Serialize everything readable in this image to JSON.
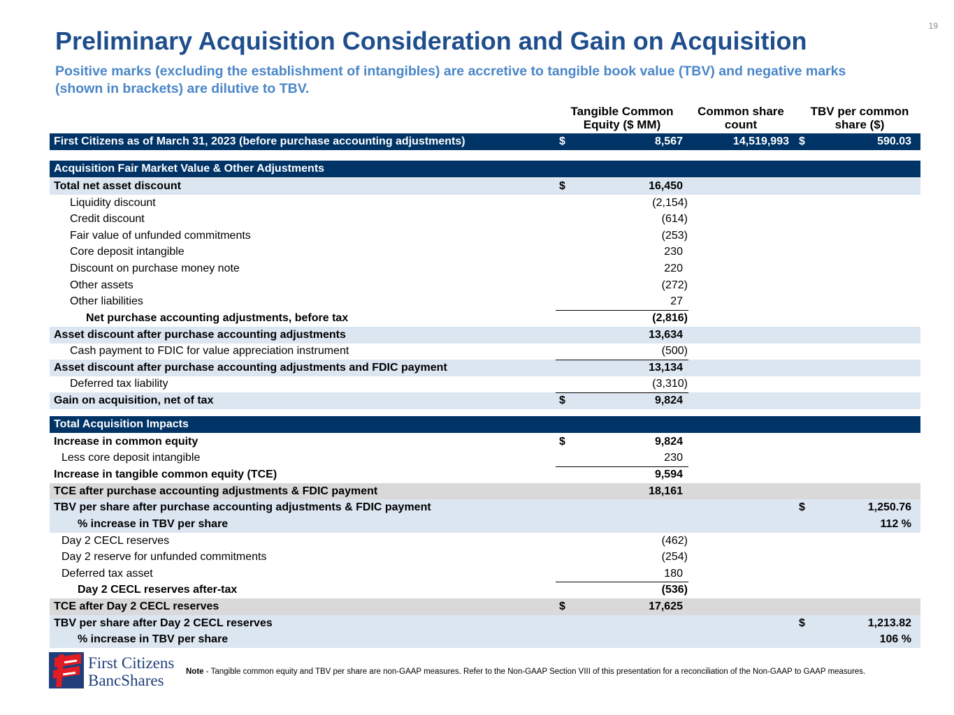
{
  "page_number": "19",
  "title": "Preliminary Acquisition Consideration and Gain on Acquisition",
  "subtitle": "Positive marks (excluding the establishment of intangibles) are accretive to tangible book value (TBV) and negative marks (shown in brackets) are dilutive to TBV.",
  "columns": {
    "tce": "Tangible Common Equity ($ MM)",
    "shares": "Common share count",
    "tbv": "TBV per common share ($)"
  },
  "rows": [
    {
      "label": "First Citizens as of March 31, 2023 (before purchase accounting adjustments)",
      "style": "dark",
      "d1": "$",
      "v1": "8,567",
      "v2": "14,519,993",
      "d3": "$",
      "v3": "590.03"
    },
    {
      "label": "Acquisition Fair Market Value & Other Adjustments",
      "style": "dark"
    },
    {
      "label": "Total net asset discount",
      "style": "light bold",
      "d1": "$",
      "v1": "16,450"
    },
    {
      "label": "Liquidity discount",
      "indent": "ind1",
      "v1": "(2,154)"
    },
    {
      "label": "Credit discount",
      "indent": "ind1",
      "v1": "(614)"
    },
    {
      "label": "Fair value of unfunded commitments",
      "indent": "ind1",
      "v1": "(253)"
    },
    {
      "label": "Core deposit intangible",
      "indent": "ind1",
      "v1": "230"
    },
    {
      "label": "Discount on purchase money note",
      "indent": "ind1",
      "v1": "220"
    },
    {
      "label": "Other assets",
      "indent": "ind1",
      "v1": "(272)"
    },
    {
      "label": "Other liabilities",
      "indent": "ind1",
      "v1": "27"
    },
    {
      "label": "Net purchase accounting adjustments, before tax",
      "style": "bold",
      "indent": "ind2",
      "v1": "(2,816)",
      "uline": true
    },
    {
      "label": "Asset discount after purchase accounting adjustments",
      "style": "light bold",
      "v1": "13,634"
    },
    {
      "label": "Cash payment to FDIC for value appreciation instrument",
      "indent": "ind1",
      "v1": "(500)"
    },
    {
      "label": "Asset discount after purchase accounting adjustments and FDIC payment",
      "style": "light bold",
      "v1": "13,134",
      "uline": true
    },
    {
      "label": "Deferred tax liability",
      "indent": "ind1",
      "v1": "(3,310)"
    },
    {
      "label": "Gain on acquisition, net of tax",
      "style": "light bold",
      "d1": "$",
      "v1": "9,824",
      "uline": true
    },
    {
      "label": "Total Acquisition Impacts",
      "style": "dark"
    },
    {
      "label": "Increase in common equity",
      "style": "bold",
      "d1": "$",
      "v1": "9,824"
    },
    {
      "label": "Less core deposit intangible",
      "indent": "ind1s",
      "v1": "230"
    },
    {
      "label": "Increase in tangible common equity (TCE)",
      "style": "bold",
      "v1": "9,594",
      "uline": true
    },
    {
      "label": "TCE after purchase accounting adjustments & FDIC payment",
      "style": "grey bold",
      "v1": "18,161"
    },
    {
      "label": "TBV per share after purchase accounting adjustments & FDIC payment",
      "style": "light bold",
      "d3": "$",
      "v3": "1,250.76"
    },
    {
      "label": "% increase in TBV per share",
      "style": "light bold",
      "indent": "ind2s",
      "v3": "112 %"
    },
    {
      "label": "Day 2 CECL reserves",
      "indent": "ind1s",
      "v1": "(462)"
    },
    {
      "label": "Day 2 reserve for unfunded commitments",
      "indent": "ind1s",
      "v1": "(254)"
    },
    {
      "label": "Deferred tax asset",
      "indent": "ind1s",
      "v1": "180"
    },
    {
      "label": "Day 2 CECL reserves after-tax",
      "style": "bold",
      "indent": "ind2s",
      "v1": "(536)",
      "uline": true
    },
    {
      "label": "TCE after Day 2 CECL reserves",
      "style": "grey bold",
      "d1": "$",
      "v1": "17,625"
    },
    {
      "label": "TBV per share after Day 2 CECL reserves",
      "style": "light bold",
      "d3": "$",
      "v3": "1,213.82"
    },
    {
      "label": "% increase in TBV per share",
      "style": "light bold",
      "indent": "ind2s",
      "v3": "106 %"
    }
  ],
  "logo": {
    "line1": "FirstCitizens",
    "line2": "BancShares"
  },
  "note": {
    "label": "Note",
    "text": " - Tangible common equity and TBV per share are non-GAAP measures. Refer to the Non-GAAP Section VIII of this presentation for a reconciliation of the Non-GAAP to GAAP measures."
  },
  "colors": {
    "navy": "#003366",
    "title": "#1f4e8c",
    "subtitle": "#4a86c8",
    "light": "#dce6f1",
    "grey": "#d9d9d9",
    "flag_red": "#e31b23"
  }
}
